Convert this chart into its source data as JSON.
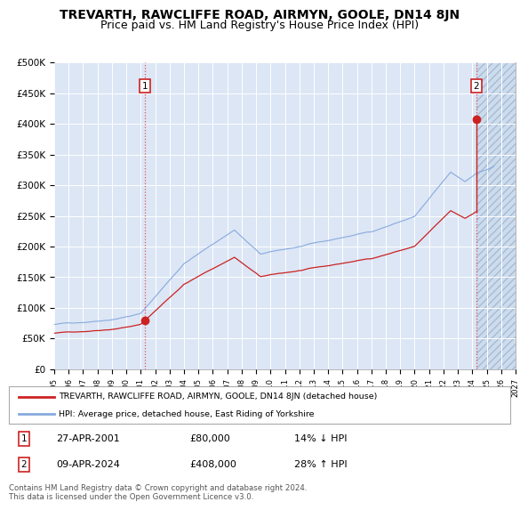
{
  "title": "TREVARTH, RAWCLIFFE ROAD, AIRMYN, GOOLE, DN14 8JN",
  "subtitle": "Price paid vs. HM Land Registry's House Price Index (HPI)",
  "ylim": [
    0,
    500000
  ],
  "yticks": [
    0,
    50000,
    100000,
    150000,
    200000,
    250000,
    300000,
    350000,
    400000,
    450000,
    500000
  ],
  "ytick_labels": [
    "£0",
    "£50K",
    "£100K",
    "£150K",
    "£200K",
    "£250K",
    "£300K",
    "£350K",
    "£400K",
    "£450K",
    "£500K"
  ],
  "plot_bg_color": "#dce6f5",
  "grid_color": "#ffffff",
  "title_fontsize": 10,
  "subtitle_fontsize": 9,
  "sale1_date": "27-APR-2001",
  "sale1_price": 80000,
  "sale1_year": 2001.31,
  "sale2_date": "09-APR-2024",
  "sale2_price": 408000,
  "sale2_year": 2024.27,
  "legend_label1": "TREVARTH, RAWCLIFFE ROAD, AIRMYN, GOOLE, DN14 8JN (detached house)",
  "legend_label2": "HPI: Average price, detached house, East Riding of Yorkshire",
  "footer": "Contains HM Land Registry data © Crown copyright and database right 2024.\nThis data is licensed under the Open Government Licence v3.0.",
  "line1_color": "#cc2222",
  "line2_color": "#88aadd",
  "sale1_pct": "14% ↓ HPI",
  "sale2_pct": "28% ↑ HPI"
}
